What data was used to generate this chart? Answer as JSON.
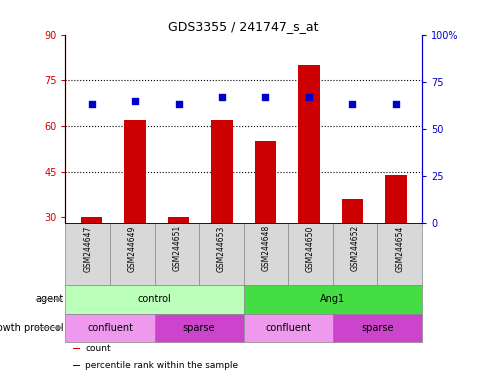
{
  "title": "GDS3355 / 241747_s_at",
  "samples": [
    "GSM244647",
    "GSM244649",
    "GSM244651",
    "GSM244653",
    "GSM244648",
    "GSM244650",
    "GSM244652",
    "GSM244654"
  ],
  "counts": [
    30,
    62,
    30,
    62,
    55,
    80,
    36,
    44
  ],
  "percentile_ranks": [
    63,
    65,
    63,
    67,
    67,
    67,
    63,
    63
  ],
  "ylim_left": [
    28,
    90
  ],
  "ylim_right": [
    0,
    100
  ],
  "yticks_left": [
    30,
    45,
    60,
    75,
    90
  ],
  "yticks_right": [
    0,
    25,
    50,
    75,
    100
  ],
  "yticklabels_right": [
    "0",
    "25",
    "50",
    "75",
    "100%"
  ],
  "hlines": [
    45,
    60,
    75
  ],
  "bar_color": "#cc0000",
  "dot_color": "#0000cc",
  "left_tick_color": "#cc0000",
  "right_tick_color": "#0000cc",
  "agent_groups": [
    {
      "text": "control",
      "start": 0,
      "end": 4,
      "color": "#bbffbb"
    },
    {
      "text": "Ang1",
      "start": 4,
      "end": 8,
      "color": "#44dd44"
    }
  ],
  "protocol_groups": [
    {
      "text": "confluent",
      "start": 0,
      "end": 2,
      "color": "#ee99ee"
    },
    {
      "text": "sparse",
      "start": 2,
      "end": 4,
      "color": "#cc44cc"
    },
    {
      "text": "confluent",
      "start": 4,
      "end": 6,
      "color": "#ee99ee"
    },
    {
      "text": "sparse",
      "start": 6,
      "end": 8,
      "color": "#cc44cc"
    }
  ],
  "legend_items": [
    {
      "label": "count",
      "color": "#cc0000"
    },
    {
      "label": "percentile rank within the sample",
      "color": "#0000cc"
    }
  ],
  "sample_bg_color": "#d8d8d8",
  "bar_width": 0.5
}
